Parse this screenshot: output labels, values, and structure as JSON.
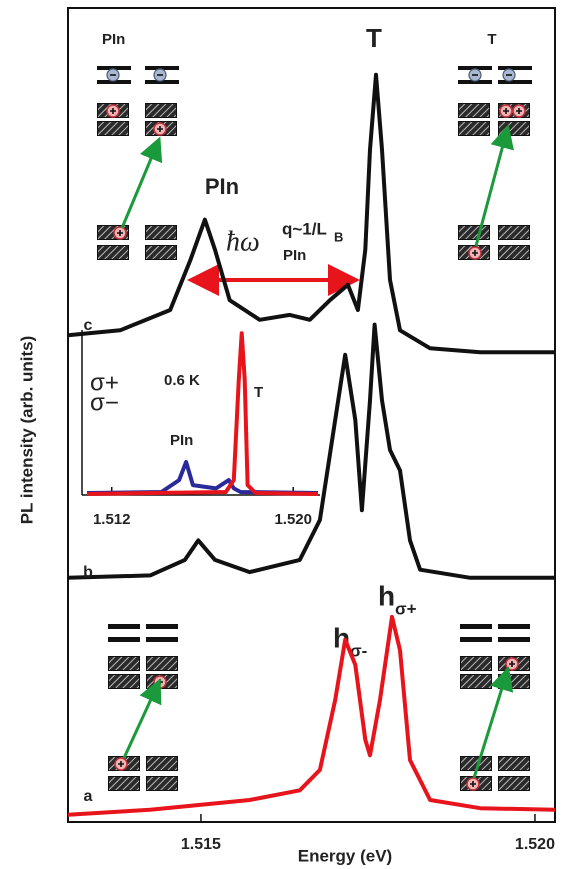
{
  "chart_data": [
    {
      "type": "line",
      "xlabel": "Energy (eV)",
      "ylabel": "PL intensity (arb. units)",
      "xlim": [
        1.51301,
        1.5203
      ],
      "ylim": [
        0,
        10
      ],
      "xticks": [
        1.515,
        {
          "value": 1.52,
          "label": "1.520"
        }
      ],
      "series": [
        {
          "name": "a",
          "color": "#e8141c",
          "x": [
            1.51301,
            1.51424,
            1.51573,
            1.51648,
            1.51678,
            1.51701,
            1.51716,
            1.51731,
            1.51746,
            1.51753,
            1.51768,
            1.51786,
            1.51798,
            1.51813,
            1.51843,
            1.51918,
            1.5203
          ],
          "values": [
            0.09,
            0.15,
            0.27,
            0.39,
            0.64,
            1.5,
            2.24,
            1.93,
            1.01,
            0.82,
            1.5,
            2.52,
            2.11,
            0.76,
            0.27,
            0.17,
            0.15
          ]
        },
        {
          "name": "b",
          "color": "#111111",
          "x": [
            1.51301,
            1.51424,
            1.51476,
            1.51496,
            1.51521,
            1.51573,
            1.51648,
            1.51678,
            1.51701,
            1.51716,
            1.51731,
            1.51741,
            1.51753,
            1.5176,
            1.51771,
            1.51783,
            1.51798,
            1.51813,
            1.51828,
            1.51903,
            1.5203
          ],
          "values": [
            3.0,
            3.03,
            3.22,
            3.46,
            3.22,
            3.07,
            3.22,
            3.71,
            4.94,
            5.74,
            4.94,
            3.83,
            5.18,
            6.11,
            5.18,
            4.57,
            4.32,
            3.46,
            3.1,
            3.0,
            3.0
          ]
        },
        {
          "name": "c",
          "color": "#111111",
          "x": [
            1.51301,
            1.51379,
            1.51454,
            1.51484,
            1.51506,
            1.51521,
            1.51543,
            1.51588,
            1.51633,
            1.51663,
            1.51693,
            1.5172,
            1.51735,
            1.51746,
            1.51753,
            1.51762,
            1.51771,
            1.51783,
            1.51798,
            1.51843,
            1.51918,
            1.5203
          ],
          "values": [
            5.98,
            6.04,
            6.29,
            6.9,
            7.4,
            7.03,
            6.41,
            6.17,
            6.23,
            6.17,
            6.41,
            6.6,
            6.29,
            7.03,
            8.26,
            9.18,
            8.26,
            6.66,
            6.04,
            5.82,
            5.77,
            5.77
          ]
        }
      ],
      "annotations": {
        "pin_small": "PIn",
        "t_large": "T",
        "t_small": "T",
        "pin_large": "PIn",
        "phonon": {
          "symbol": "ħω",
          "superscript": "q~1/L",
          "superscript_sub": "B",
          "subscript": "PIn"
        },
        "h_minus": {
          "symbol": "h",
          "subscript": "σ-"
        },
        "h_plus": {
          "symbol": "h",
          "subscript": "σ+"
        }
      }
    },
    {
      "type": "line",
      "xlim": [
        1.51069,
        1.52118
      ],
      "ylim": [
        0,
        1
      ],
      "xticks": [
        1.512,
        {
          "value": 1.52,
          "label": "1.520"
        }
      ],
      "series": [
        {
          "name": "σ−",
          "color": "#2a2a9a",
          "x": [
            1.51091,
            1.51419,
            1.51497,
            1.51528,
            1.51558,
            1.51659,
            1.51716,
            1.51738,
            1.51768,
            1.52109
          ],
          "values": [
            0.012,
            0.018,
            0.09,
            0.2,
            0.06,
            0.04,
            0.09,
            0.04,
            0.018,
            0.012
          ]
        },
        {
          "name": "σ+",
          "color": "#e8141c",
          "x": [
            1.51091,
            1.51703,
            1.51738,
            1.5176,
            1.51773,
            1.51786,
            1.51799,
            1.51834,
            1.52109
          ],
          "values": [
            0.006,
            0.018,
            0.09,
            0.7,
            0.98,
            0.7,
            0.06,
            0.012,
            0.006
          ]
        }
      ],
      "annotations": {
        "temperature": "0.6 K",
        "t": "T",
        "pin": "PIn"
      }
    }
  ]
}
